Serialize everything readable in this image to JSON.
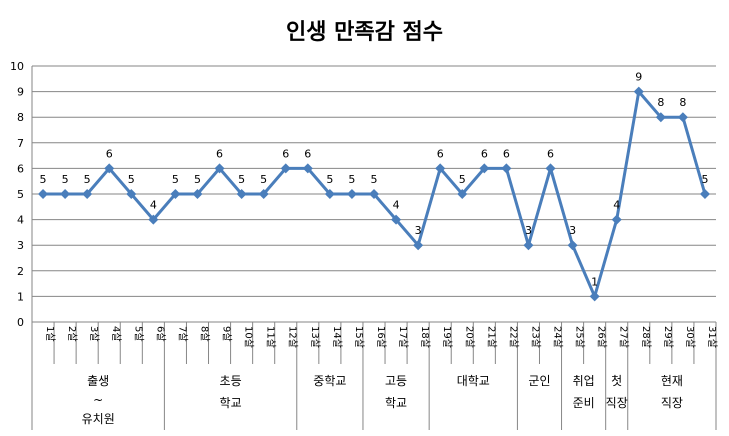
{
  "chart_data": {
    "type": "line",
    "title": "인생 만족감 점수",
    "xlabel": "",
    "ylabel": "",
    "ylim": [
      0,
      10
    ],
    "yticks": [
      "0",
      "1",
      "2",
      "3",
      "4",
      "5",
      "6",
      "7",
      "8",
      "9",
      "10"
    ],
    "grid": true,
    "legend": "none",
    "series": [
      {
        "name": "만족감 점수",
        "color": "#4a7ebb",
        "values": [
          5,
          5,
          5,
          6,
          5,
          4,
          5,
          5,
          6,
          5,
          5,
          6,
          6,
          5,
          5,
          5,
          4,
          3,
          6,
          5,
          6,
          6,
          3,
          6,
          3,
          1,
          4,
          9,
          8,
          8,
          5
        ]
      }
    ],
    "categories": [
      "1살",
      "2살",
      "3살",
      "4살",
      "5살",
      "6살",
      "7살",
      "8살",
      "9살",
      "10살",
      "11살",
      "12살",
      "13살",
      "14살",
      "15살",
      "16살",
      "17살",
      "18살",
      "19살",
      "20살",
      "21살",
      "22살",
      "23살",
      "24살",
      "25살",
      "26살",
      "27살",
      "28살",
      "29살",
      "30살",
      "31살"
    ],
    "groups": [
      {
        "label": [
          "출생",
          "~",
          "유치원"
        ],
        "start": 1,
        "end": 6
      },
      {
        "label": [
          "초등",
          "학교"
        ],
        "start": 7,
        "end": 12
      },
      {
        "label": [
          "중학교"
        ],
        "start": 13,
        "end": 15
      },
      {
        "label": [
          "고등",
          "학교"
        ],
        "start": 16,
        "end": 18
      },
      {
        "label": [
          "대학교"
        ],
        "start": 19,
        "end": 22
      },
      {
        "label": [
          "군인"
        ],
        "start": 23,
        "end": 24
      },
      {
        "label": [
          "취업",
          "준비"
        ],
        "start": 25,
        "end": 26
      },
      {
        "label": [
          "첫",
          "직장"
        ],
        "start": 27,
        "end": 27
      },
      {
        "label": [
          "현재",
          "직장"
        ],
        "start": 28,
        "end": 31
      }
    ]
  }
}
